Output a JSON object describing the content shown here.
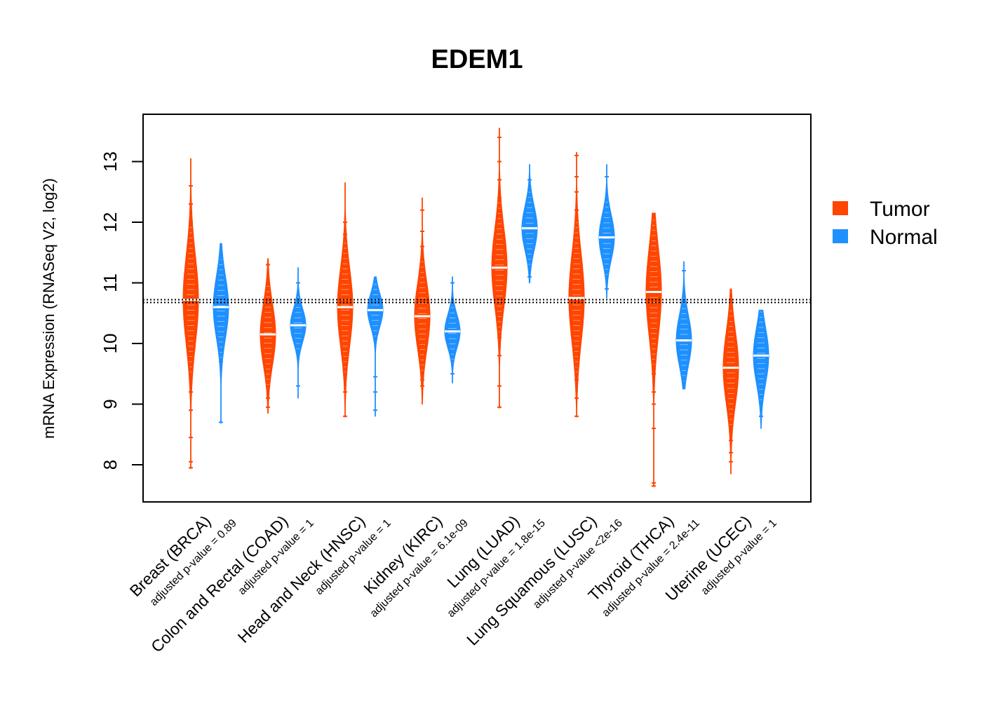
{
  "chart_data": {
    "type": "violin",
    "title": "EDEM1",
    "ylabel": "mRNA Expression (RNASeq V2, log2)",
    "xlabel": "",
    "ylim": [
      7.4,
      13.75
    ],
    "yticks": [
      8,
      9,
      10,
      11,
      12,
      13
    ],
    "reference_line": 10.7,
    "legend": [
      {
        "name": "Tumor",
        "color": "#FF4500"
      },
      {
        "name": "Normal",
        "color": "#1E90FF"
      }
    ],
    "groups": [
      {
        "label": "Breast (BRCA)",
        "pvalue": "adjusted p-value = 0.89",
        "tumor": {
          "min": 7.95,
          "q1": 10.3,
          "median": 10.72,
          "q3": 11.1,
          "max": 13.05,
          "top_outliers": [
            12.6,
            12.3,
            12.0
          ],
          "bottom_outliers": [
            9.5,
            9.2,
            8.9,
            8.45,
            8.05,
            7.95
          ]
        },
        "normal": {
          "min": 8.7,
          "q1": 10.35,
          "median": 10.6,
          "q3": 10.9,
          "max": 11.65,
          "top_outliers": [
            11.4
          ],
          "bottom_outliers": [
            9.7,
            8.7
          ]
        }
      },
      {
        "label": "Colon and Rectal (COAD)",
        "pvalue": "adjusted p-value = 1",
        "tumor": {
          "min": 8.85,
          "q1": 9.9,
          "median": 10.15,
          "q3": 10.45,
          "max": 11.4,
          "top_outliers": [
            11.3
          ],
          "bottom_outliers": [
            9.1,
            8.95
          ]
        },
        "normal": {
          "min": 9.1,
          "q1": 10.15,
          "median": 10.3,
          "q3": 10.45,
          "max": 11.25,
          "top_outliers": [
            11.0
          ],
          "bottom_outliers": [
            9.3
          ]
        }
      },
      {
        "label": "Head and Neck (HNSC)",
        "pvalue": "adjusted p-value = 1",
        "tumor": {
          "min": 8.8,
          "q1": 10.25,
          "median": 10.6,
          "q3": 10.95,
          "max": 12.65,
          "top_outliers": [
            12.0,
            11.8
          ],
          "bottom_outliers": [
            9.5,
            9.2,
            8.8
          ]
        },
        "normal": {
          "min": 8.8,
          "q1": 10.4,
          "median": 10.55,
          "q3": 10.7,
          "max": 11.1,
          "top_outliers": [],
          "bottom_outliers": [
            9.45,
            9.2,
            8.9
          ]
        }
      },
      {
        "label": "Kidney (KIRC)",
        "pvalue": "adjusted p-value = 6.1e-09",
        "tumor": {
          "min": 9.0,
          "q1": 10.15,
          "median": 10.45,
          "q3": 10.75,
          "max": 12.4,
          "top_outliers": [
            12.2,
            11.85,
            11.6
          ],
          "bottom_outliers": [
            9.4,
            9.3
          ]
        },
        "normal": {
          "min": 9.35,
          "q1": 10.05,
          "median": 10.2,
          "q3": 10.35,
          "max": 11.1,
          "top_outliers": [
            11.0
          ],
          "bottom_outliers": [
            9.5
          ]
        }
      },
      {
        "label": "Lung (LUAD)",
        "pvalue": "adjusted p-value = 1.8e-15",
        "tumor": {
          "min": 8.95,
          "q1": 10.9,
          "median": 11.25,
          "q3": 11.6,
          "max": 13.55,
          "top_outliers": [
            13.4,
            13.0,
            12.7,
            12.4
          ],
          "bottom_outliers": [
            10.1,
            9.8,
            9.3,
            8.95
          ]
        },
        "normal": {
          "min": 11.0,
          "q1": 11.7,
          "median": 11.9,
          "q3": 12.1,
          "max": 12.95,
          "top_outliers": [
            12.7
          ],
          "bottom_outliers": [
            11.1
          ]
        }
      },
      {
        "label": "Lung Squamous (LUSC)",
        "pvalue": "adjusted p-value <2e-16",
        "tumor": {
          "min": 8.8,
          "q1": 10.35,
          "median": 10.75,
          "q3": 11.15,
          "max": 13.15,
          "top_outliers": [
            13.1,
            12.75,
            12.5,
            12.2
          ],
          "bottom_outliers": [
            9.6,
            9.4,
            9.1,
            8.8
          ]
        },
        "normal": {
          "min": 10.75,
          "q1": 11.55,
          "median": 11.75,
          "q3": 11.95,
          "max": 12.95,
          "top_outliers": [
            12.75
          ],
          "bottom_outliers": [
            10.9
          ]
        }
      },
      {
        "label": "Thyroid (THCA)",
        "pvalue": "adjusted p-value = 2.4e-11",
        "tumor": {
          "min": 7.65,
          "q1": 10.45,
          "median": 10.85,
          "q3": 11.25,
          "max": 12.15,
          "top_outliers": [
            12.0
          ],
          "bottom_outliers": [
            9.5,
            9.2,
            9.0,
            8.6,
            7.7,
            7.65
          ]
        },
        "normal": {
          "min": 9.25,
          "q1": 9.85,
          "median": 10.05,
          "q3": 10.3,
          "max": 11.35,
          "top_outliers": [
            11.2
          ],
          "bottom_outliers": [
            9.4
          ]
        }
      },
      {
        "label": "Uterine (UCEC)",
        "pvalue": "adjusted p-value = 1",
        "tumor": {
          "min": 7.85,
          "q1": 9.3,
          "median": 9.6,
          "q3": 9.95,
          "max": 10.9,
          "top_outliers": [
            10.6
          ],
          "bottom_outliers": [
            8.4,
            8.2,
            8.05
          ]
        },
        "normal": {
          "min": 8.6,
          "q1": 9.55,
          "median": 9.8,
          "q3": 10.05,
          "max": 10.55,
          "top_outliers": [],
          "bottom_outliers": [
            8.8
          ]
        }
      }
    ]
  }
}
